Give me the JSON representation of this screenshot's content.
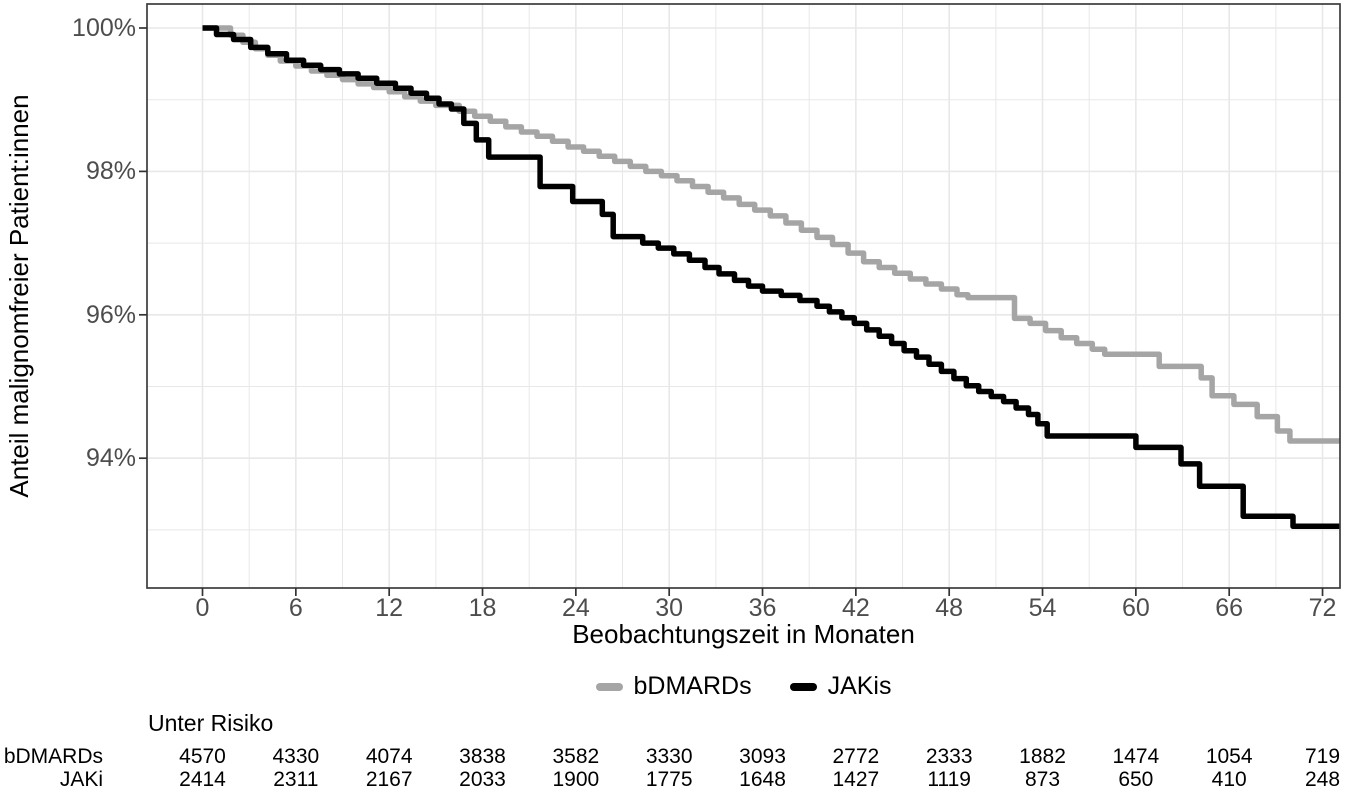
{
  "figure": {
    "y_axis_title": "Anteil malignomfreier Patient:innen",
    "x_axis_title": "Beobachtungszeit in Monaten"
  },
  "legend": {
    "items": [
      {
        "label": "bDMARDs",
        "color": "#a5a5a5"
      },
      {
        "label": "JAKis",
        "color": "#000000"
      }
    ]
  },
  "risk_table": {
    "title": "Unter Risiko",
    "rows": [
      {
        "label": "bDMARDs",
        "values": [
          4570,
          4330,
          4074,
          3838,
          3582,
          3330,
          3093,
          2772,
          2333,
          1882,
          1474,
          1054,
          719
        ]
      },
      {
        "label": "JAKi",
        "values": [
          2414,
          2311,
          2167,
          2033,
          1900,
          1775,
          1648,
          1427,
          1119,
          873,
          650,
          410,
          248
        ]
      }
    ]
  },
  "chart_data": {
    "type": "line",
    "subtype": "step-survival",
    "title": "",
    "xlabel": "Beobachtungszeit in Monaten",
    "ylabel": "Anteil malignomfreier Patient:innen",
    "xlim": [
      -3.5,
      73.3
    ],
    "ylim": [
      92.2,
      100.35
    ],
    "x_ticks": [
      0,
      6,
      12,
      18,
      24,
      30,
      36,
      42,
      48,
      54,
      60,
      66,
      72
    ],
    "y_ticks": [
      {
        "label": "100%",
        "value": 100
      },
      {
        "label": "98%",
        "value": 98
      },
      {
        "label": "96%",
        "value": 96
      },
      {
        "label": "94%",
        "value": 94
      }
    ],
    "x_minor_ticks": [
      3,
      9,
      15,
      21,
      27,
      33,
      39,
      45,
      51,
      57,
      63,
      69
    ],
    "y_minor_ticks": [
      99,
      97,
      95,
      93
    ],
    "grid": true,
    "legend_position": "bottom",
    "colors": {
      "grid": "#e8e8e8",
      "panel_border": "#3c3c3c",
      "tick_text": "#4d4d4d"
    },
    "series": [
      {
        "name": "bDMARDs",
        "color": "#a5a5a5",
        "points": [
          [
            0,
            100
          ],
          [
            1.8,
            99.9
          ],
          [
            2.6,
            99.8
          ],
          [
            3.4,
            99.71
          ],
          [
            4.2,
            99.62
          ],
          [
            5,
            99.54
          ],
          [
            6,
            99.47
          ],
          [
            7,
            99.4
          ],
          [
            8,
            99.34
          ],
          [
            9,
            99.28
          ],
          [
            10,
            99.22
          ],
          [
            11,
            99.17
          ],
          [
            12,
            99.11
          ],
          [
            13,
            99.04
          ],
          [
            14,
            98.98
          ],
          [
            15,
            98.92
          ],
          [
            16.5,
            98.84
          ],
          [
            17.5,
            98.77
          ],
          [
            18.5,
            98.7
          ],
          [
            19.5,
            98.62
          ],
          [
            20.5,
            98.55
          ],
          [
            21.5,
            98.49
          ],
          [
            22.5,
            98.42
          ],
          [
            23.5,
            98.34
          ],
          [
            24.5,
            98.28
          ],
          [
            25.5,
            98.21
          ],
          [
            26.5,
            98.14
          ],
          [
            27.5,
            98.07
          ],
          [
            28.5,
            98.0
          ],
          [
            29.5,
            97.94
          ],
          [
            30.5,
            97.87
          ],
          [
            31.5,
            97.79
          ],
          [
            32.5,
            97.71
          ],
          [
            33.5,
            97.63
          ],
          [
            34.5,
            97.54
          ],
          [
            35.5,
            97.46
          ],
          [
            36.5,
            97.38
          ],
          [
            37.5,
            97.28
          ],
          [
            38.5,
            97.18
          ],
          [
            39.5,
            97.08
          ],
          [
            40.5,
            96.98
          ],
          [
            41.5,
            96.86
          ],
          [
            42.5,
            96.74
          ],
          [
            43.5,
            96.66
          ],
          [
            44.5,
            96.58
          ],
          [
            45.5,
            96.5
          ],
          [
            46.5,
            96.43
          ],
          [
            47.5,
            96.36
          ],
          [
            48.5,
            96.28
          ],
          [
            49.2,
            96.24
          ],
          [
            52.2,
            95.95
          ],
          [
            53.2,
            95.88
          ],
          [
            54.2,
            95.78
          ],
          [
            55.2,
            95.68
          ],
          [
            56.2,
            95.6
          ],
          [
            57.2,
            95.52
          ],
          [
            58,
            95.45
          ],
          [
            61.5,
            95.28
          ],
          [
            64.2,
            95.12
          ],
          [
            64.9,
            94.87
          ],
          [
            66.3,
            94.75
          ],
          [
            67.8,
            94.58
          ],
          [
            69.1,
            94.38
          ],
          [
            69.9,
            94.24
          ]
        ]
      },
      {
        "name": "JAKis",
        "color": "#000000",
        "points": [
          [
            0,
            100
          ],
          [
            0.9,
            99.91
          ],
          [
            2,
            99.84
          ],
          [
            3.1,
            99.73
          ],
          [
            4.2,
            99.64
          ],
          [
            5.4,
            99.55
          ],
          [
            6.5,
            99.48
          ],
          [
            7.6,
            99.42
          ],
          [
            8.8,
            99.36
          ],
          [
            10,
            99.3
          ],
          [
            11.2,
            99.23
          ],
          [
            12.4,
            99.16
          ],
          [
            13.4,
            99.09
          ],
          [
            14.4,
            99.02
          ],
          [
            15.2,
            98.94
          ],
          [
            16,
            98.87
          ],
          [
            16.8,
            98.67
          ],
          [
            17.6,
            98.44
          ],
          [
            18.4,
            98.2
          ],
          [
            21.7,
            97.79
          ],
          [
            23.8,
            97.58
          ],
          [
            25.7,
            97.4
          ],
          [
            26.4,
            97.09
          ],
          [
            28.3,
            97.0
          ],
          [
            29.3,
            96.93
          ],
          [
            30.3,
            96.85
          ],
          [
            31.3,
            96.76
          ],
          [
            32.3,
            96.66
          ],
          [
            33.2,
            96.57
          ],
          [
            34.2,
            96.48
          ],
          [
            35.1,
            96.4
          ],
          [
            36,
            96.33
          ],
          [
            37.2,
            96.27
          ],
          [
            38.4,
            96.2
          ],
          [
            39.5,
            96.12
          ],
          [
            40.3,
            96.04
          ],
          [
            41.1,
            95.96
          ],
          [
            41.9,
            95.88
          ],
          [
            42.7,
            95.79
          ],
          [
            43.5,
            95.7
          ],
          [
            44.3,
            95.6
          ],
          [
            45.1,
            95.5
          ],
          [
            45.9,
            95.41
          ],
          [
            46.7,
            95.31
          ],
          [
            47.5,
            95.21
          ],
          [
            48.3,
            95.11
          ],
          [
            49.1,
            95.01
          ],
          [
            49.9,
            94.93
          ],
          [
            50.7,
            94.86
          ],
          [
            51.5,
            94.79
          ],
          [
            52.3,
            94.7
          ],
          [
            53.1,
            94.61
          ],
          [
            53.7,
            94.48
          ],
          [
            54.3,
            94.31
          ],
          [
            60,
            94.15
          ],
          [
            62.9,
            93.92
          ],
          [
            64.1,
            93.61
          ],
          [
            66.9,
            93.19
          ],
          [
            70.1,
            93.05
          ]
        ]
      }
    ]
  }
}
